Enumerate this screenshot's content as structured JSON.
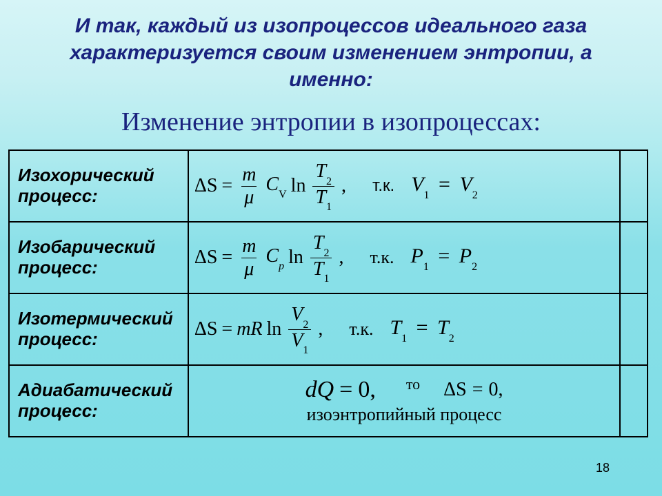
{
  "header": "И так, каждый из изопроцессов идеального газа характеризуется своим изменением энтропии, а именно:",
  "subheader": "Изменение энтропии в изопроцессах:",
  "page_number": "18",
  "rows": {
    "isochoric": {
      "label": "Изохорический процесс:",
      "ds": "ΔS",
      "eq": "=",
      "num": "m",
      "den": "μ",
      "C": "C",
      "Csub": "V",
      "ln": "ln",
      "Tnum": "T",
      "Tnumsub": "2",
      "Tden": "T",
      "Tdensub": "1",
      "comma": ",",
      "tk": "т.к.",
      "condL": "V",
      "condLs": "1",
      "condEq": "=",
      "condR": "V",
      "condRs": "2"
    },
    "isobaric": {
      "label": "Изобарический процесс:",
      "ds": "ΔS",
      "eq": "=",
      "num": "m",
      "den": "μ",
      "C": "C",
      "Csub": "p",
      "ln": "ln",
      "Tnum": "T",
      "Tnumsub": "2",
      "Tden": "T",
      "Tdensub": "1",
      "comma": ",",
      "tk": "т.к.",
      "condL": "P",
      "condLs": "1",
      "condEq": "=",
      "condR": "P",
      "condRs": "2"
    },
    "isothermal": {
      "label": "Изотермический процесс:",
      "ds": "ΔS",
      "eq": "=",
      "mR": "mR",
      "ln": "ln",
      "Vnum": "V",
      "Vnumsub": "2",
      "Vden": "V",
      "Vdensub": "1",
      "comma": ",",
      "tk": "т.к.",
      "condL": "T",
      "condLs": "1",
      "condEq": "=",
      "condR": "T",
      "condRs": "2"
    },
    "adiabatic": {
      "label": "Адиабатический процесс:",
      "dQ": "dQ",
      "eq1": "=",
      "zero1": "0,",
      "to": "то",
      "dS": "ΔS",
      "eq2": "=",
      "zero2": "0,",
      "line2": "изоэнтропийный процесс"
    }
  },
  "colors": {
    "title": "#1a237e",
    "text": "#000000",
    "border": "#000000"
  }
}
